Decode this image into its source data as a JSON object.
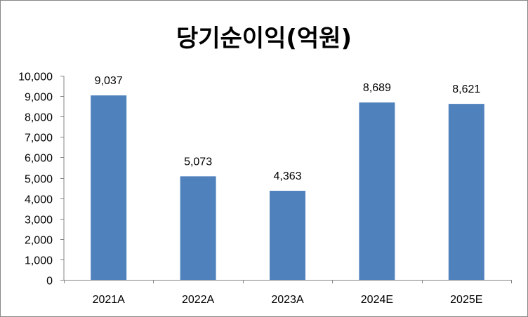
{
  "chart_data": {
    "type": "bar",
    "title": "당기순이익(억원)",
    "categories": [
      "2021A",
      "2022A",
      "2023A",
      "2024E",
      "2025E"
    ],
    "values": [
      9037,
      5073,
      4363,
      8689,
      8621
    ],
    "data_labels": [
      "9,037",
      "5,073",
      "4,363",
      "8,689",
      "8,621"
    ],
    "ylim": [
      0,
      10000
    ],
    "yticks": [
      0,
      1000,
      2000,
      3000,
      4000,
      5000,
      6000,
      7000,
      8000,
      9000,
      10000
    ],
    "ytick_labels": [
      "0",
      "1,000",
      "2,000",
      "3,000",
      "4,000",
      "5,000",
      "6,000",
      "7,000",
      "8,000",
      "9,000",
      "10,000"
    ],
    "grid": false,
    "legend": "none",
    "colors": {
      "bar": "#4F81BD",
      "axis": "#868686",
      "border": "#868686"
    }
  }
}
